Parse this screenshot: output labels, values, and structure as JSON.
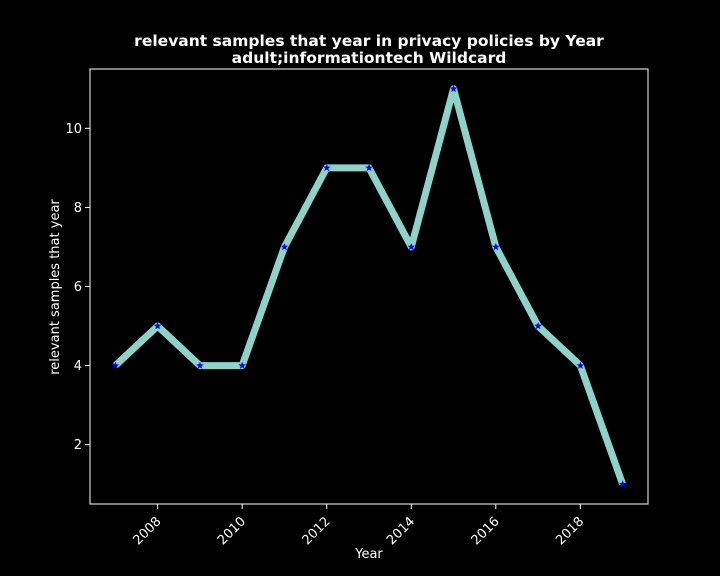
{
  "chart_data": {
    "type": "line",
    "title_line1": "relevant samples that year in privacy policies by Year",
    "title_line2": "adult;informationtech Wildcard",
    "xlabel": "Year",
    "ylabel": "relevant samples that year",
    "x": [
      2007,
      2008,
      2009,
      2010,
      2011,
      2012,
      2013,
      2014,
      2015,
      2016,
      2017,
      2018,
      2019
    ],
    "values": [
      4,
      5,
      4,
      4,
      7,
      9,
      9,
      7,
      11,
      7,
      5,
      4,
      1
    ],
    "xticks": [
      2008,
      2010,
      2012,
      2014,
      2016,
      2018
    ],
    "yticks": [
      2,
      4,
      6,
      8,
      10
    ],
    "xlim": [
      2006.4,
      2019.6
    ],
    "ylim": [
      0.5,
      11.5
    ],
    "grid": false,
    "line_color": "#8dd3c7",
    "marker_color": "#0000ff",
    "marker": "star",
    "background": "#000000"
  }
}
